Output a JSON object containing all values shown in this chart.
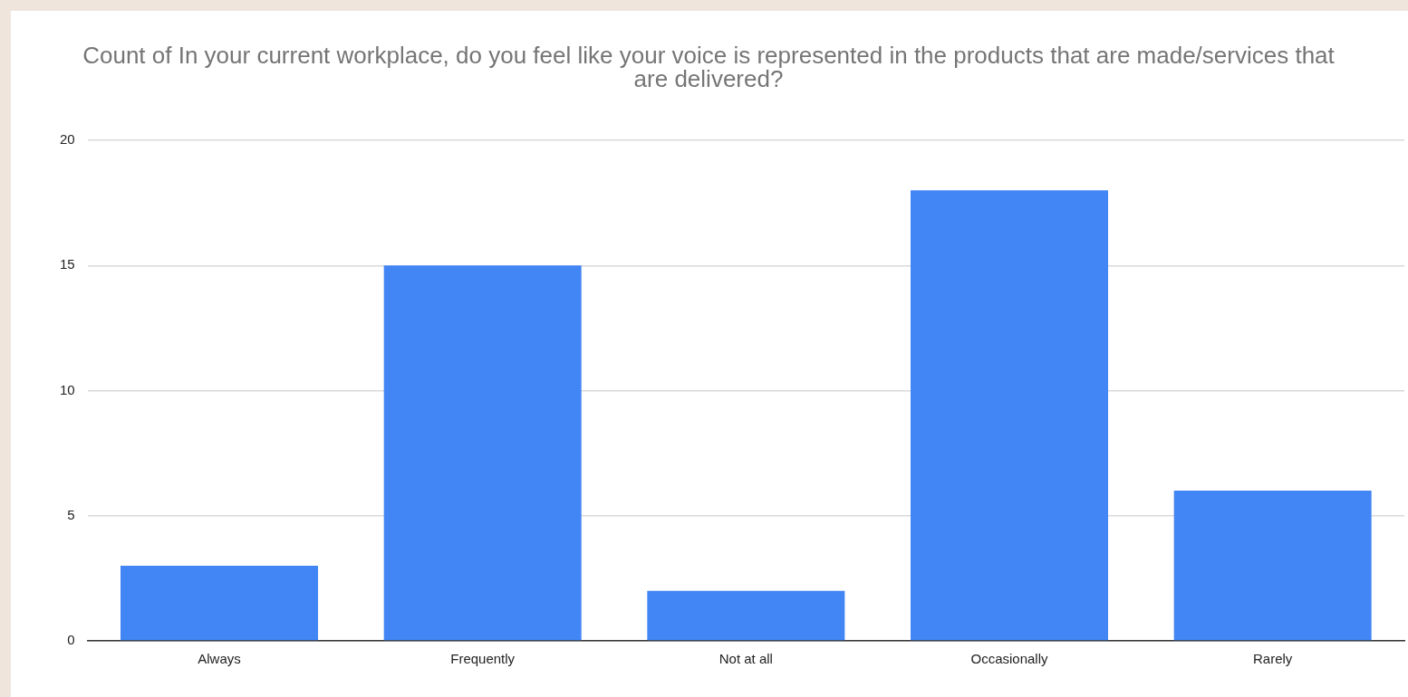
{
  "chart_data": {
    "type": "bar",
    "title": "Count of In your current workplace, do you feel like your voice is represented in the products that are made/services that are delivered?",
    "categories": [
      "Always",
      "Frequently",
      "Not at all",
      "Occasionally",
      "Rarely"
    ],
    "values": [
      3,
      15,
      2,
      18,
      6
    ],
    "color": "#4285f4",
    "ylim": [
      0,
      20
    ],
    "yticks": [
      0,
      5,
      10,
      15,
      20
    ],
    "grid": "y",
    "legend": false
  }
}
